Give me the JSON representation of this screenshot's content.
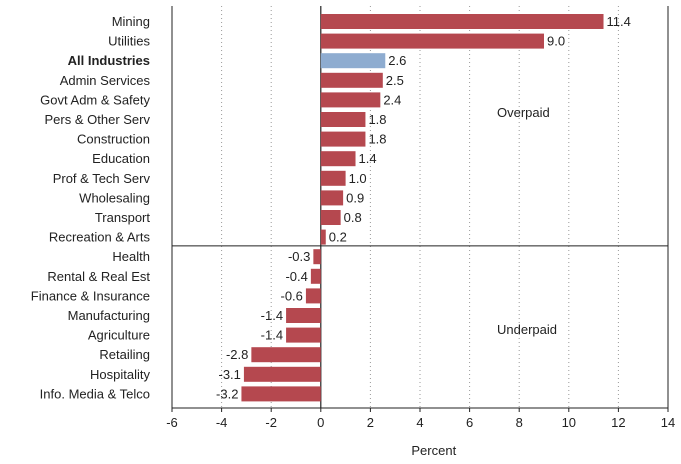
{
  "chart_data": {
    "type": "bar",
    "orientation": "horizontal",
    "categories": [
      "Mining",
      "Utilities",
      "All Industries",
      "Admin Services",
      "Govt Adm & Safety",
      "Pers & Other Serv",
      "Construction",
      "Education",
      "Prof & Tech Serv",
      "Wholesaling",
      "Transport",
      "Recreation & Arts",
      "Health",
      "Rental & Real Est",
      "Finance & Insurance",
      "Manufacturing",
      "Agriculture",
      "Retailing",
      "Hospitality",
      "Info. Media & Telco"
    ],
    "values": [
      11.4,
      9.0,
      2.6,
      2.5,
      2.4,
      1.8,
      1.8,
      1.4,
      1.0,
      0.9,
      0.8,
      0.2,
      -0.3,
      -0.4,
      -0.6,
      -1.4,
      -1.4,
      -2.8,
      -3.1,
      -3.2
    ],
    "value_labels": [
      "11.4",
      "9.0",
      "2.6",
      "2.5",
      "2.4",
      "1.8",
      "1.8",
      "1.4",
      "1.0",
      "0.9",
      "0.8",
      "0.2",
      "-0.3",
      "-0.4",
      "-0.6",
      "-1.4",
      "-1.4",
      "-2.8",
      "-3.1",
      "-3.2"
    ],
    "highlight_category": "All Industries",
    "xlabel": "Percent",
    "xlim": [
      -6,
      14
    ],
    "xticks": [
      -6,
      -4,
      -2,
      0,
      2,
      4,
      6,
      8,
      10,
      12,
      14
    ],
    "xtick_labels": [
      "-6",
      "-4",
      "-2",
      "0",
      "2",
      "4",
      "6",
      "8",
      "10",
      "12",
      "14"
    ],
    "grid": "vertical dotted",
    "annotations": [
      "Overpaid",
      "Underpaid"
    ],
    "colors": {
      "bar": "#b5484f",
      "highlight": "#8eacd0",
      "grid": "#9a9a9a",
      "axis": "#222222"
    }
  }
}
